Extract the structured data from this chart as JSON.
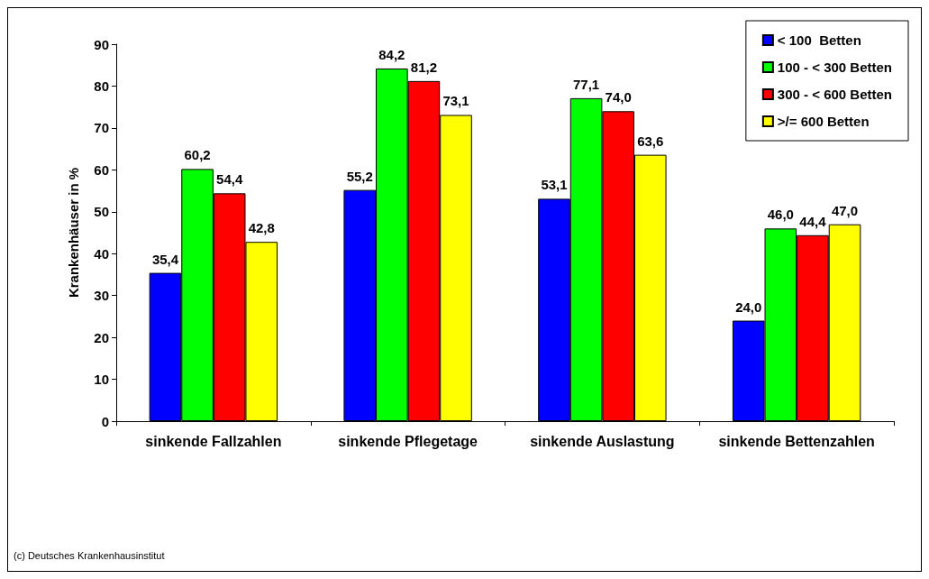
{
  "chart_data": {
    "type": "bar",
    "ylabel": "Krankenhäuser in %",
    "categories": [
      "sinkende Fallzahlen",
      "sinkende Pflegetage",
      "sinkende Auslastung",
      "sinkende Bettenzahlen"
    ],
    "series": [
      {
        "name": "< 100  Betten",
        "color": "#0000ff",
        "values": [
          35.4,
          55.2,
          53.1,
          24.0
        ],
        "value_labels": [
          "35,4",
          "55,2",
          "53,1",
          "24,0"
        ]
      },
      {
        "name": "100 - < 300 Betten",
        "color": "#00ff00",
        "values": [
          60.2,
          84.2,
          77.1,
          46.0
        ],
        "value_labels": [
          "60,2",
          "84,2",
          "77,1",
          "46,0"
        ]
      },
      {
        "name": "300 - < 600 Betten",
        "color": "#ff0000",
        "values": [
          54.4,
          81.2,
          74.0,
          44.4
        ],
        "value_labels": [
          "54,4",
          "81,2",
          "74,0",
          "44,4"
        ]
      },
      {
        "name": ">/= 600 Betten",
        "color": "#ffff00",
        "values": [
          42.8,
          73.1,
          63.6,
          47.0
        ],
        "value_labels": [
          "42,8",
          "73,1",
          "63,6",
          "47,0"
        ]
      }
    ],
    "ylim": [
      0,
      90
    ],
    "yticks": [
      0,
      10,
      20,
      30,
      40,
      50,
      60,
      70,
      80,
      90
    ],
    "grid": false,
    "legend": "top right",
    "annotations": [
      "(c) Deutsches Krankenhausinstitut"
    ]
  }
}
